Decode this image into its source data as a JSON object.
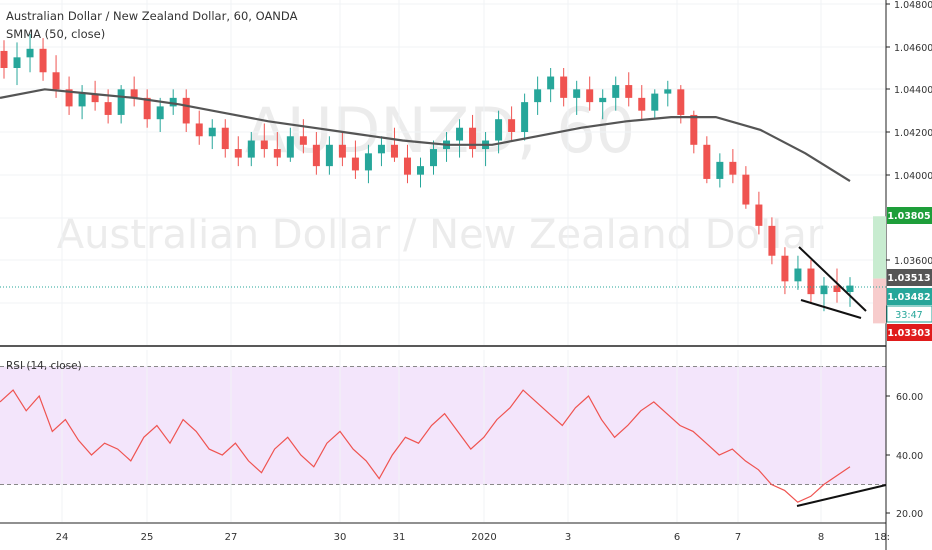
{
  "header": {
    "symbol_line": "Australian Dollar / New Zealand Dollar, 60, OANDA",
    "indicator_line": "SMMA (50, close)",
    "watermark_symbol": "AUDNZD, 60",
    "watermark_name": "Australian Dollar / New Zealand Dollar"
  },
  "rsi": {
    "label": "RSI (14, close)",
    "upper_band": 70,
    "lower_band": 30
  },
  "price_axis": {
    "ticks": [
      "1.04800",
      "1.04600",
      "1.04400",
      "1.04200",
      "1.04000",
      "1.03600"
    ]
  },
  "rsi_axis": {
    "ticks": [
      "60.00",
      "40.00",
      "20.00"
    ]
  },
  "badges": {
    "target": "1.03805",
    "last_close": "1.03513",
    "current": "1.03482",
    "countdown": "33:47",
    "stop": "1.03303"
  },
  "time_axis": {
    "labels": [
      "24",
      "25",
      "27",
      "30",
      "31",
      "2020",
      "3",
      "6",
      "7",
      "8",
      "18:"
    ]
  },
  "colors": {
    "bull": "#26a69a",
    "bear": "#ef5350",
    "smma": "#555555",
    "rsi_line": "#ef5350",
    "rsi_band_fill": "#f3e5fb",
    "target_badge": "#1e9e3a",
    "stop_badge": "#e01b1b",
    "current_badge": "#26a69a",
    "last_badge": "#555555"
  },
  "chart_data": [
    {
      "type": "candlestick",
      "title": "Australian Dollar / New Zealand Dollar, 60, OANDA",
      "ylim": [
        1.0325,
        1.048
      ],
      "smma_period": 50,
      "smma_points": [
        {
          "t": "23 12:00",
          "v": 1.0436
        },
        {
          "t": "24 00:00",
          "v": 1.044
        },
        {
          "t": "24 12:00",
          "v": 1.0438
        },
        {
          "t": "25 00:00",
          "v": 1.0436
        },
        {
          "t": "25 12:00",
          "v": 1.0433
        },
        {
          "t": "27 00:00",
          "v": 1.0429
        },
        {
          "t": "27 12:00",
          "v": 1.0425
        },
        {
          "t": "30 00:00",
          "v": 1.0422
        },
        {
          "t": "30 12:00",
          "v": 1.0419
        },
        {
          "t": "31 00:00",
          "v": 1.0416
        },
        {
          "t": "31 12:00",
          "v": 1.0414
        },
        {
          "t": "2020 00:00",
          "v": 1.0414
        },
        {
          "t": "2020 12:00",
          "v": 1.0418
        },
        {
          "t": "3 00:00",
          "v": 1.0422
        },
        {
          "t": "3 12:00",
          "v": 1.0425
        },
        {
          "t": "6 00:00",
          "v": 1.0427
        },
        {
          "t": "6 12:00",
          "v": 1.0427
        },
        {
          "t": "7 00:00",
          "v": 1.0421
        },
        {
          "t": "7 12:00",
          "v": 1.041
        },
        {
          "t": "8 00:00",
          "v": 1.0397
        }
      ],
      "candles": [
        {
          "o": 1.0458,
          "h": 1.0463,
          "l": 1.0445,
          "c": 1.045
        },
        {
          "o": 1.045,
          "h": 1.0462,
          "l": 1.0442,
          "c": 1.0455
        },
        {
          "o": 1.0455,
          "h": 1.0466,
          "l": 1.0448,
          "c": 1.0459
        },
        {
          "o": 1.0459,
          "h": 1.0464,
          "l": 1.0444,
          "c": 1.0448
        },
        {
          "o": 1.0448,
          "h": 1.0456,
          "l": 1.0436,
          "c": 1.044
        },
        {
          "o": 1.044,
          "h": 1.0446,
          "l": 1.0428,
          "c": 1.0432
        },
        {
          "o": 1.0432,
          "h": 1.0442,
          "l": 1.0426,
          "c": 1.0438
        },
        {
          "o": 1.0438,
          "h": 1.0444,
          "l": 1.043,
          "c": 1.0434
        },
        {
          "o": 1.0434,
          "h": 1.044,
          "l": 1.0424,
          "c": 1.0428
        },
        {
          "o": 1.0428,
          "h": 1.0442,
          "l": 1.0424,
          "c": 1.044
        },
        {
          "o": 1.044,
          "h": 1.0446,
          "l": 1.0432,
          "c": 1.0436
        },
        {
          "o": 1.0436,
          "h": 1.044,
          "l": 1.0422,
          "c": 1.0426
        },
        {
          "o": 1.0426,
          "h": 1.0436,
          "l": 1.042,
          "c": 1.0432
        },
        {
          "o": 1.0432,
          "h": 1.044,
          "l": 1.0428,
          "c": 1.0436
        },
        {
          "o": 1.0436,
          "h": 1.044,
          "l": 1.042,
          "c": 1.0424
        },
        {
          "o": 1.0424,
          "h": 1.043,
          "l": 1.0414,
          "c": 1.0418
        },
        {
          "o": 1.0418,
          "h": 1.0426,
          "l": 1.0412,
          "c": 1.0422
        },
        {
          "o": 1.0422,
          "h": 1.0426,
          "l": 1.0408,
          "c": 1.0412
        },
        {
          "o": 1.0412,
          "h": 1.0418,
          "l": 1.0404,
          "c": 1.0408
        },
        {
          "o": 1.0408,
          "h": 1.042,
          "l": 1.0404,
          "c": 1.0416
        },
        {
          "o": 1.0416,
          "h": 1.0424,
          "l": 1.0408,
          "c": 1.0412
        },
        {
          "o": 1.0412,
          "h": 1.042,
          "l": 1.0404,
          "c": 1.0408
        },
        {
          "o": 1.0408,
          "h": 1.0422,
          "l": 1.0406,
          "c": 1.0418
        },
        {
          "o": 1.0418,
          "h": 1.0426,
          "l": 1.041,
          "c": 1.0414
        },
        {
          "o": 1.0414,
          "h": 1.042,
          "l": 1.04,
          "c": 1.0404
        },
        {
          "o": 1.0404,
          "h": 1.0418,
          "l": 1.04,
          "c": 1.0414
        },
        {
          "o": 1.0414,
          "h": 1.042,
          "l": 1.0404,
          "c": 1.0408
        },
        {
          "o": 1.0408,
          "h": 1.0416,
          "l": 1.0398,
          "c": 1.0402
        },
        {
          "o": 1.0402,
          "h": 1.0414,
          "l": 1.0396,
          "c": 1.041
        },
        {
          "o": 1.041,
          "h": 1.0418,
          "l": 1.0404,
          "c": 1.0414
        },
        {
          "o": 1.0414,
          "h": 1.0422,
          "l": 1.0406,
          "c": 1.0408
        },
        {
          "o": 1.0408,
          "h": 1.0414,
          "l": 1.0396,
          "c": 1.04
        },
        {
          "o": 1.04,
          "h": 1.0408,
          "l": 1.0394,
          "c": 1.0404
        },
        {
          "o": 1.0404,
          "h": 1.0416,
          "l": 1.04,
          "c": 1.0412
        },
        {
          "o": 1.0412,
          "h": 1.042,
          "l": 1.0406,
          "c": 1.0416
        },
        {
          "o": 1.0416,
          "h": 1.0426,
          "l": 1.0408,
          "c": 1.0422
        },
        {
          "o": 1.0422,
          "h": 1.0428,
          "l": 1.0408,
          "c": 1.0412
        },
        {
          "o": 1.0412,
          "h": 1.042,
          "l": 1.0404,
          "c": 1.0416
        },
        {
          "o": 1.0416,
          "h": 1.043,
          "l": 1.041,
          "c": 1.0426
        },
        {
          "o": 1.0426,
          "h": 1.0432,
          "l": 1.0416,
          "c": 1.042
        },
        {
          "o": 1.042,
          "h": 1.0438,
          "l": 1.0416,
          "c": 1.0434
        },
        {
          "o": 1.0434,
          "h": 1.0446,
          "l": 1.0428,
          "c": 1.044
        },
        {
          "o": 1.044,
          "h": 1.045,
          "l": 1.0434,
          "c": 1.0446
        },
        {
          "o": 1.0446,
          "h": 1.045,
          "l": 1.0432,
          "c": 1.0436
        },
        {
          "o": 1.0436,
          "h": 1.0444,
          "l": 1.0428,
          "c": 1.044
        },
        {
          "o": 1.044,
          "h": 1.0446,
          "l": 1.043,
          "c": 1.0434
        },
        {
          "o": 1.0434,
          "h": 1.044,
          "l": 1.0426,
          "c": 1.0436
        },
        {
          "o": 1.0436,
          "h": 1.0446,
          "l": 1.043,
          "c": 1.0442
        },
        {
          "o": 1.0442,
          "h": 1.0448,
          "l": 1.0432,
          "c": 1.0436
        },
        {
          "o": 1.0436,
          "h": 1.0442,
          "l": 1.0426,
          "c": 1.043
        },
        {
          "o": 1.043,
          "h": 1.044,
          "l": 1.0426,
          "c": 1.0438
        },
        {
          "o": 1.0438,
          "h": 1.0444,
          "l": 1.0432,
          "c": 1.044
        },
        {
          "o": 1.044,
          "h": 1.0442,
          "l": 1.0424,
          "c": 1.0428
        },
        {
          "o": 1.0428,
          "h": 1.043,
          "l": 1.041,
          "c": 1.0414
        },
        {
          "o": 1.0414,
          "h": 1.0418,
          "l": 1.0396,
          "c": 1.0398
        },
        {
          "o": 1.0398,
          "h": 1.041,
          "l": 1.0394,
          "c": 1.0406
        },
        {
          "o": 1.0406,
          "h": 1.0412,
          "l": 1.0396,
          "c": 1.04
        },
        {
          "o": 1.04,
          "h": 1.0404,
          "l": 1.0384,
          "c": 1.0386
        },
        {
          "o": 1.0386,
          "h": 1.0392,
          "l": 1.0372,
          "c": 1.0376
        },
        {
          "o": 1.0376,
          "h": 1.038,
          "l": 1.0358,
          "c": 1.0362
        },
        {
          "o": 1.0362,
          "h": 1.0366,
          "l": 1.0344,
          "c": 1.035
        },
        {
          "o": 1.035,
          "h": 1.0362,
          "l": 1.0346,
          "c": 1.0356
        },
        {
          "o": 1.0356,
          "h": 1.036,
          "l": 1.034,
          "c": 1.0344
        },
        {
          "o": 1.0344,
          "h": 1.0352,
          "l": 1.0336,
          "c": 1.0348
        },
        {
          "o": 1.0348,
          "h": 1.0356,
          "l": 1.034,
          "c": 1.0345
        },
        {
          "o": 1.0345,
          "h": 1.0352,
          "l": 1.0338,
          "c": 1.0348
        }
      ],
      "pattern": "falling wedge",
      "position_tool": {
        "entry": 1.03513,
        "target": 1.03805,
        "stop": 1.03303
      }
    },
    {
      "type": "line",
      "title": "RSI (14, close)",
      "ylim": [
        15,
        75
      ],
      "bands": [
        30,
        70
      ],
      "values": [
        58,
        62,
        55,
        60,
        48,
        52,
        45,
        40,
        44,
        42,
        38,
        46,
        50,
        44,
        52,
        48,
        42,
        40,
        44,
        38,
        34,
        42,
        46,
        40,
        36,
        44,
        48,
        42,
        38,
        32,
        40,
        46,
        44,
        50,
        54,
        48,
        42,
        46,
        52,
        56,
        62,
        58,
        54,
        50,
        56,
        60,
        52,
        46,
        50,
        55,
        58,
        54,
        50,
        48,
        44,
        40,
        42,
        38,
        35,
        30,
        28,
        24,
        26,
        30,
        33,
        36
      ]
    }
  ]
}
